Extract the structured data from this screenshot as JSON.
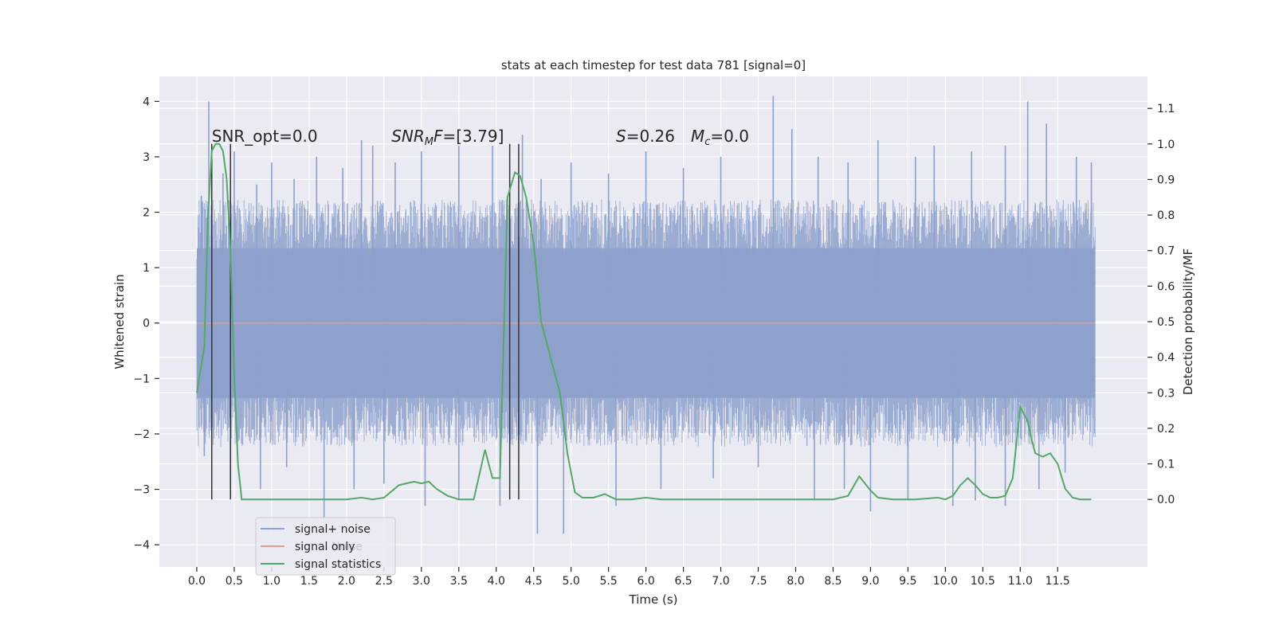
{
  "chart_data": {
    "type": "line",
    "title": "stats at each timestep for test data 781 [signal=0]",
    "xlabel": "Time (s)",
    "ylabel_left": "Whitened strain",
    "ylabel_right": "Detection probability/MF",
    "xlim": [
      -0.5,
      12.7
    ],
    "ylim_left": [
      -4.4,
      4.45
    ],
    "ylim_right": [
      -0.19,
      1.19
    ],
    "x_ticks": [
      0.0,
      0.5,
      1.0,
      1.5,
      2.0,
      2.5,
      3.0,
      3.5,
      4.0,
      4.5,
      5.0,
      5.5,
      6.0,
      6.5,
      7.0,
      7.5,
      8.0,
      8.5,
      9.0,
      9.5,
      10.0,
      10.5,
      11.0,
      11.5
    ],
    "x_tick_labels": [
      "0.0",
      "0.5",
      "1.0",
      "1.5",
      "2.0",
      "2.5",
      "3.0",
      "3.5",
      "4.0",
      "4.5",
      "5.0",
      "5.5",
      "6.0",
      "6.5",
      "7.0",
      "7.5",
      "8.0",
      "8.5",
      "9.0",
      "9.5",
      "10.0",
      "10.5",
      "11.0",
      "11.5"
    ],
    "y_left_ticks": [
      -4,
      -3,
      -2,
      -1,
      0,
      1,
      2,
      3,
      4
    ],
    "y_left_tick_labels": [
      "−4",
      "−3",
      "−2",
      "−1",
      "0",
      "1",
      "2",
      "3",
      "4"
    ],
    "y_right_ticks": [
      0.0,
      0.1,
      0.2,
      0.3,
      0.4,
      0.5,
      0.6,
      0.7,
      0.8,
      0.9,
      1.0,
      1.1
    ],
    "y_right_tick_labels": [
      "0.0",
      "0.1",
      "0.2",
      "0.3",
      "0.4",
      "0.5",
      "0.6",
      "0.7",
      "0.8",
      "0.9",
      "1.0",
      "1.1"
    ],
    "grid": true,
    "legend_location": "lower-left",
    "series": [
      {
        "name": "signal+ noise",
        "axis": "left",
        "color": "#8da0cb",
        "x_range": [
          0.0,
          12.0
        ],
        "typical_range": [
          -1.35,
          1.35
        ],
        "peaks": [
          {
            "x": 0.06,
            "y": 2.3
          },
          {
            "x": 0.16,
            "y": 4.0
          },
          {
            "x": 0.35,
            "y": 2.7
          },
          {
            "x": 0.5,
            "y": 3.1
          },
          {
            "x": 0.8,
            "y": 2.5
          },
          {
            "x": 1.0,
            "y": 2.9
          },
          {
            "x": 1.3,
            "y": 2.6
          },
          {
            "x": 1.6,
            "y": 3.0
          },
          {
            "x": 1.95,
            "y": 2.8
          },
          {
            "x": 2.2,
            "y": 3.3
          },
          {
            "x": 2.35,
            "y": 3.2
          },
          {
            "x": 2.65,
            "y": 2.9
          },
          {
            "x": 3.0,
            "y": 3.1
          },
          {
            "x": 3.5,
            "y": 3.2
          },
          {
            "x": 3.95,
            "y": 3.2
          },
          {
            "x": 4.35,
            "y": 3.4
          },
          {
            "x": 4.6,
            "y": 2.6
          },
          {
            "x": 5.0,
            "y": 2.9
          },
          {
            "x": 5.5,
            "y": 2.7
          },
          {
            "x": 6.0,
            "y": 3.1
          },
          {
            "x": 6.5,
            "y": 2.8
          },
          {
            "x": 7.0,
            "y": 3.0
          },
          {
            "x": 7.7,
            "y": 4.1
          },
          {
            "x": 7.95,
            "y": 3.5
          },
          {
            "x": 8.3,
            "y": 3.0
          },
          {
            "x": 8.7,
            "y": 2.9
          },
          {
            "x": 9.1,
            "y": 3.3
          },
          {
            "x": 9.6,
            "y": 3.0
          },
          {
            "x": 9.85,
            "y": 3.2
          },
          {
            "x": 10.35,
            "y": 3.1
          },
          {
            "x": 10.8,
            "y": 3.2
          },
          {
            "x": 11.1,
            "y": 4.0
          },
          {
            "x": 11.35,
            "y": 3.6
          },
          {
            "x": 11.75,
            "y": 3.0
          },
          {
            "x": 11.95,
            "y": 2.9
          }
        ],
        "troughs": [
          {
            "x": 0.1,
            "y": -2.4
          },
          {
            "x": 0.45,
            "y": -2.9
          },
          {
            "x": 0.85,
            "y": -3.0
          },
          {
            "x": 1.2,
            "y": -2.6
          },
          {
            "x": 1.7,
            "y": -3.5
          },
          {
            "x": 2.1,
            "y": -3.0
          },
          {
            "x": 2.5,
            "y": -2.9
          },
          {
            "x": 3.05,
            "y": -3.3
          },
          {
            "x": 3.5,
            "y": -3.2
          },
          {
            "x": 4.05,
            "y": -3.3
          },
          {
            "x": 4.55,
            "y": -3.8
          },
          {
            "x": 4.9,
            "y": -3.8
          },
          {
            "x": 5.6,
            "y": -3.3
          },
          {
            "x": 6.2,
            "y": -3.0
          },
          {
            "x": 6.9,
            "y": -2.8
          },
          {
            "x": 7.5,
            "y": -2.6
          },
          {
            "x": 8.25,
            "y": -3.2
          },
          {
            "x": 8.65,
            "y": -3.0
          },
          {
            "x": 9.0,
            "y": -3.4
          },
          {
            "x": 9.5,
            "y": -3.2
          },
          {
            "x": 10.1,
            "y": -3.3
          },
          {
            "x": 10.4,
            "y": -3.2
          },
          {
            "x": 10.8,
            "y": -3.3
          },
          {
            "x": 11.25,
            "y": -3.0
          },
          {
            "x": 11.6,
            "y": -2.7
          }
        ]
      },
      {
        "name": "signal only",
        "axis": "left",
        "color": "#dd9f8f",
        "x": [
          0.0,
          12.0
        ],
        "y": [
          0.0,
          0.0
        ]
      },
      {
        "name": "signal statistics",
        "axis": "right",
        "color": "#55a868",
        "x": [
          0.0,
          0.1,
          0.15,
          0.2,
          0.25,
          0.3,
          0.35,
          0.4,
          0.45,
          0.5,
          0.55,
          0.6,
          0.65,
          0.7,
          0.8,
          1.0,
          1.3,
          1.6,
          2.0,
          2.2,
          2.35,
          2.5,
          2.7,
          2.9,
          3.0,
          3.1,
          3.2,
          3.35,
          3.5,
          3.7,
          3.85,
          3.95,
          4.05,
          4.15,
          4.25,
          4.32,
          4.4,
          4.5,
          4.6,
          4.65,
          4.75,
          4.85,
          4.95,
          5.05,
          5.15,
          5.3,
          5.45,
          5.6,
          5.8,
          6.0,
          6.2,
          6.5,
          7.0,
          7.5,
          8.0,
          8.5,
          8.7,
          8.85,
          9.0,
          9.1,
          9.3,
          9.6,
          9.9,
          10.0,
          10.1,
          10.2,
          10.3,
          10.4,
          10.5,
          10.6,
          10.7,
          10.8,
          10.9,
          11.0,
          11.1,
          11.15,
          11.2,
          11.3,
          11.4,
          11.5,
          11.6,
          11.7,
          11.8,
          11.95
        ],
        "y": [
          0.3,
          0.43,
          0.8,
          0.98,
          1.0,
          1.0,
          0.98,
          0.9,
          0.7,
          0.35,
          0.1,
          0.0,
          0.0,
          0.0,
          0.0,
          0.0,
          0.0,
          0.0,
          0.0,
          0.005,
          0.0,
          0.005,
          0.04,
          0.05,
          0.045,
          0.05,
          0.03,
          0.01,
          0.0,
          0.0,
          0.14,
          0.06,
          0.06,
          0.85,
          0.92,
          0.91,
          0.85,
          0.72,
          0.5,
          0.46,
          0.38,
          0.3,
          0.13,
          0.02,
          0.005,
          0.005,
          0.015,
          0.0,
          0.0,
          0.005,
          0.0,
          0.0,
          0.0,
          0.0,
          0.0,
          0.0,
          0.01,
          0.065,
          0.025,
          0.005,
          0.0,
          0.0,
          0.005,
          0.0,
          0.01,
          0.04,
          0.06,
          0.04,
          0.015,
          0.005,
          0.005,
          0.01,
          0.06,
          0.26,
          0.22,
          0.17,
          0.13,
          0.12,
          0.13,
          0.1,
          0.03,
          0.005,
          0.0,
          0.0
        ]
      }
    ],
    "vertical_markers": [
      {
        "x": 0.2,
        "color": "#333333"
      },
      {
        "x": 0.45,
        "color": "#333333"
      },
      {
        "x": 4.18,
        "color": "#333333"
      },
      {
        "x": 4.3,
        "color": "#333333"
      }
    ],
    "annotations": [
      {
        "id": "snr-opt",
        "text": "SNR_opt=0.0",
        "x": 0.2,
        "y": 3.27
      },
      {
        "id": "snr-mf",
        "x": 2.6,
        "y": 3.27,
        "math_base": "SNR",
        "math_sub": "M",
        "math_tail": "F",
        "suffix": "=[3.79]"
      },
      {
        "id": "stat",
        "x": 5.6,
        "y": 3.27,
        "math_base": "S",
        "suffix": "=0.26"
      },
      {
        "id": "mc",
        "x": 6.6,
        "y": 3.27,
        "math_base": "M",
        "math_sub": "c",
        "suffix": "=0.0"
      }
    ],
    "legend": {
      "entries": [
        "signal+ noise",
        "signal only",
        "signal statistics"
      ],
      "ghost_text": "Noise"
    }
  }
}
